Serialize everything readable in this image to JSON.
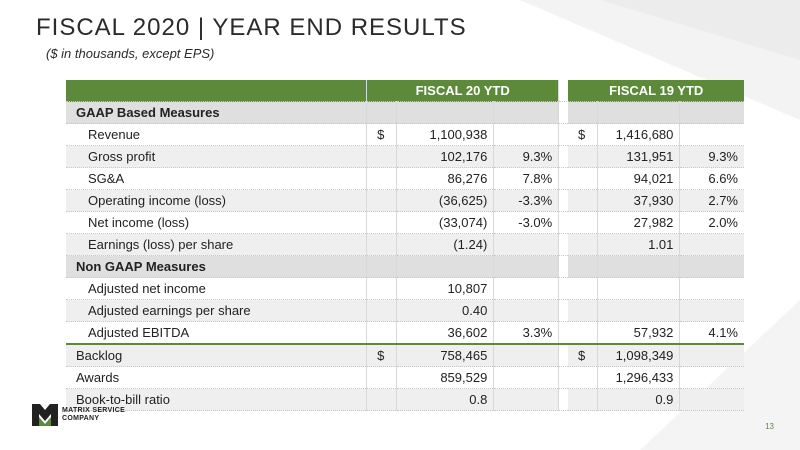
{
  "slide": {
    "title": "FISCAL 2020 | YEAR END RESULTS",
    "subtitle": "($ in thousands, except EPS)",
    "page_number": "13",
    "colors": {
      "accent_green": "#5c8a3a",
      "section_gray": "#dfdfdf",
      "row_shade": "#efefef"
    }
  },
  "table": {
    "col_fy20": "FISCAL 20 YTD",
    "col_fy19": "FISCAL 19 YTD",
    "rows": [
      {
        "label": "GAAP Based Measures",
        "type": "section",
        "fy20_dollar": "",
        "fy20_value": "",
        "fy20_pct": "",
        "fy19_dollar": "",
        "fy19_value": "",
        "fy19_pct": ""
      },
      {
        "label": "Revenue",
        "type": "indent",
        "fy20_dollar": "$",
        "fy20_value": "1,100,938",
        "fy20_pct": "",
        "fy19_dollar": "$",
        "fy19_value": "1,416,680",
        "fy19_pct": ""
      },
      {
        "label": "Gross profit",
        "type": "indent",
        "fy20_dollar": "",
        "fy20_value": "102,176",
        "fy20_pct": "9.3%",
        "fy19_dollar": "",
        "fy19_value": "131,951",
        "fy19_pct": "9.3%"
      },
      {
        "label": "SG&A",
        "type": "indent",
        "fy20_dollar": "",
        "fy20_value": "86,276",
        "fy20_pct": "7.8%",
        "fy19_dollar": "",
        "fy19_value": "94,021",
        "fy19_pct": "6.6%"
      },
      {
        "label": "Operating income (loss)",
        "type": "indent",
        "fy20_dollar": "",
        "fy20_value": "(36,625)",
        "fy20_pct": "-3.3%",
        "fy19_dollar": "",
        "fy19_value": "37,930",
        "fy19_pct": "2.7%"
      },
      {
        "label": "Net income (loss)",
        "type": "indent",
        "fy20_dollar": "",
        "fy20_value": "(33,074)",
        "fy20_pct": "-3.0%",
        "fy19_dollar": "",
        "fy19_value": "27,982",
        "fy19_pct": "2.0%"
      },
      {
        "label": "Earnings (loss) per share",
        "type": "indent",
        "fy20_dollar": "",
        "fy20_value": "(1.24)",
        "fy20_pct": "",
        "fy19_dollar": "",
        "fy19_value": "1.01",
        "fy19_pct": ""
      },
      {
        "label": "Non GAAP Measures",
        "type": "section",
        "fy20_dollar": "",
        "fy20_value": "",
        "fy20_pct": "",
        "fy19_dollar": "",
        "fy19_value": "",
        "fy19_pct": ""
      },
      {
        "label": "Adjusted net income",
        "type": "indent",
        "fy20_dollar": "",
        "fy20_value": "10,807",
        "fy20_pct": "",
        "fy19_dollar": "",
        "fy19_value": "",
        "fy19_pct": ""
      },
      {
        "label": "Adjusted earnings per share",
        "type": "indent",
        "fy20_dollar": "",
        "fy20_value": "0.40",
        "fy20_pct": "",
        "fy19_dollar": "",
        "fy19_value": "",
        "fy19_pct": ""
      },
      {
        "label": "Adjusted EBITDA",
        "type": "indent",
        "fy20_dollar": "",
        "fy20_value": "36,602",
        "fy20_pct": "3.3%",
        "fy19_dollar": "",
        "fy19_value": "57,932",
        "fy19_pct": "4.1%"
      },
      {
        "label": "Backlog",
        "type": "plain",
        "fy20_dollar": "$",
        "fy20_value": "758,465",
        "fy20_pct": "",
        "fy19_dollar": "$",
        "fy19_value": "1,098,349",
        "fy19_pct": ""
      },
      {
        "label": "Awards",
        "type": "plain",
        "fy20_dollar": "",
        "fy20_value": "859,529",
        "fy20_pct": "",
        "fy19_dollar": "",
        "fy19_value": "1,296,433",
        "fy19_pct": ""
      },
      {
        "label": "Book-to-bill ratio",
        "type": "plain",
        "fy20_dollar": "",
        "fy20_value": "0.8",
        "fy20_pct": "",
        "fy19_dollar": "",
        "fy19_value": "0.9",
        "fy19_pct": ""
      }
    ]
  },
  "logo": {
    "line1": "MATRIX SERVICE",
    "line2": "COMPANY"
  }
}
